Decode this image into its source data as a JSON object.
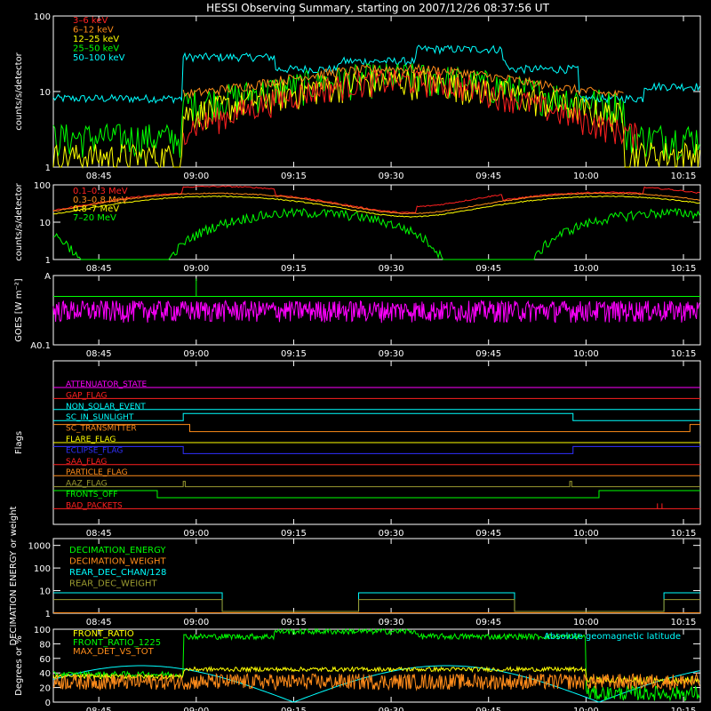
{
  "title": "HESSI Observing Summary, starting on 2007/12/26 08:37:56 UT",
  "time_ticks": [
    "08:45",
    "09:00",
    "09:15",
    "09:30",
    "09:45",
    "10:00",
    "10:15"
  ],
  "time_range_min": [
    0,
    99.6
  ],
  "colors": {
    "axes": "#ffffff",
    "red": "#ff2020",
    "orange": "#ff8c1a",
    "yellow": "#ffff00",
    "green": "#00ff00",
    "cyan": "#00ffff",
    "magenta": "#ff00ff",
    "blue": "#3030ff",
    "olive": "#9a9a30",
    "gray": "#c0c0c0"
  },
  "chart_data": [
    {
      "id": "xray",
      "type": "line",
      "yscale": "log",
      "ylim": [
        1,
        100
      ],
      "ylabel": "counts/s/detector",
      "yticks": [
        {
          "v": 1,
          "label": "1"
        },
        {
          "v": 10,
          "label": "10"
        },
        {
          "v": 100,
          "label": "100"
        }
      ],
      "legend": [
        {
          "name": "3–6 keV",
          "color": "#ff2020"
        },
        {
          "name": "6–12 keV",
          "color": "#ff8c1a"
        },
        {
          "name": "12–25 keV",
          "color": "#ffff00"
        },
        {
          "name": "25–50 keV",
          "color": "#00ff00"
        },
        {
          "name": "50–100 keV",
          "color": "#00ffff"
        }
      ]
    },
    {
      "id": "gamma",
      "type": "line",
      "yscale": "log",
      "ylim": [
        1,
        100
      ],
      "ylabel": "counts/s/detector",
      "yticks": [
        {
          "v": 1,
          "label": "1"
        },
        {
          "v": 10,
          "label": "10"
        },
        {
          "v": 100,
          "label": "100"
        }
      ],
      "legend": [
        {
          "name": "0.1–0.3 MeV",
          "color": "#ff2020"
        },
        {
          "name": "0.3–0.8 MeV",
          "color": "#ff8c1a"
        },
        {
          "name": "0.8–7 MeV",
          "color": "#ffff00"
        },
        {
          "name": "7–20 MeV",
          "color": "#00ff00"
        }
      ]
    },
    {
      "id": "goes",
      "type": "line",
      "yscale": "log",
      "ylim": [
        1e-08,
        1e-07
      ],
      "ylabel": "GOES [W m⁻²]",
      "yticks": [
        {
          "v": 1e-07,
          "label": "A"
        },
        {
          "v": 1e-08,
          "label": "A0.1"
        }
      ]
    },
    {
      "id": "flags",
      "type": "line",
      "ylabel": "Flags",
      "flags": [
        {
          "name": "ATTENUATOR_STATE",
          "color": "#ff00ff"
        },
        {
          "name": "GAP_FLAG",
          "color": "#ff2020"
        },
        {
          "name": "NON_SOLAR_EVENT",
          "color": "#00ffff"
        },
        {
          "name": "SC_IN_SUNLIGHT",
          "color": "#00ffff"
        },
        {
          "name": "SC_TRANSMITTER",
          "color": "#ff8c1a"
        },
        {
          "name": "FLARE_FLAG",
          "color": "#ffff00"
        },
        {
          "name": "ECLIPSE_FLAG",
          "color": "#3030ff"
        },
        {
          "name": "SAA_FLAG",
          "color": "#ff2020"
        },
        {
          "name": "PARTICLE_FLAG",
          "color": "#ff8c1a"
        },
        {
          "name": "AAZ_FLAG",
          "color": "#9a9a30"
        },
        {
          "name": "FRONTS_OFF",
          "color": "#00ff00"
        },
        {
          "name": "BAD_PACKETS",
          "color": "#ff2020"
        }
      ]
    },
    {
      "id": "decim",
      "type": "line",
      "yscale": "log",
      "ylim": [
        1,
        2000
      ],
      "ylabel": "DECIMATION ENERGY or weight",
      "yticks": [
        {
          "v": 1,
          "label": "1"
        },
        {
          "v": 10,
          "label": "10"
        },
        {
          "v": 100,
          "label": "100"
        },
        {
          "v": 1000,
          "label": "1000"
        }
      ],
      "legend": [
        {
          "name": "DECIMATION_ENERGY",
          "color": "#00ff00"
        },
        {
          "name": "DECIMATION_WEIGHT",
          "color": "#ff8c1a"
        },
        {
          "name": "REAR_DEC_CHAN/128",
          "color": "#00ffff"
        },
        {
          "name": "REAR_DEC_WEIGHT",
          "color": "#9a9a30"
        }
      ]
    },
    {
      "id": "ratio",
      "type": "line",
      "ylim": [
        0,
        100
      ],
      "ylabel": "Degrees or %",
      "yticks": [
        {
          "v": 0,
          "label": "0"
        },
        {
          "v": 20,
          "label": "20"
        },
        {
          "v": 40,
          "label": "40"
        },
        {
          "v": 60,
          "label": "60"
        },
        {
          "v": 80,
          "label": "80"
        },
        {
          "v": 100,
          "label": "100"
        }
      ],
      "legend": [
        {
          "name": "FRONT_RATIO",
          "color": "#ffff00"
        },
        {
          "name": "FRONT_RATIO_1225",
          "color": "#00ff00"
        },
        {
          "name": "MAX_DET_VS_TOT",
          "color": "#ff8c1a"
        }
      ],
      "annotation": {
        "text": "Absolute geomagnetic latitude",
        "color": "#00ffff"
      }
    }
  ]
}
